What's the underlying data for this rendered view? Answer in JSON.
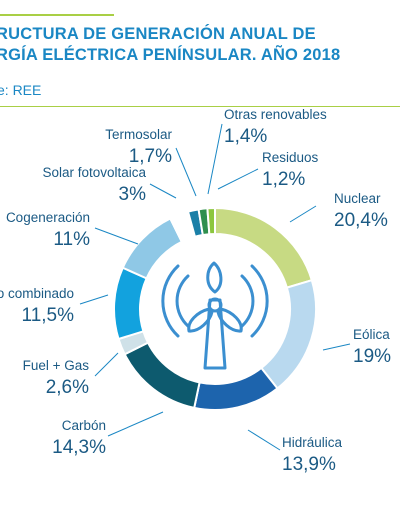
{
  "header": {
    "title_line1": "RUCTURA DE GENERACIÓN ANUAL DE",
    "title_line2": "RGÍA ELÉCTRICA PENÍNSULAR. AÑO 2018",
    "source": "e: REE"
  },
  "chart_data": {
    "type": "pie",
    "style": "donut",
    "center_icon": "wind-turbine-icon",
    "slices": [
      {
        "name": "Nuclear",
        "label": "20,4%",
        "value": 20.4,
        "color": "#c7da83"
      },
      {
        "name": "Eólica",
        "label": "19%",
        "value": 19.0,
        "color": "#b9d9ef"
      },
      {
        "name": "Hidráulica",
        "label": "13,9%",
        "value": 13.9,
        "color": "#1d64ad"
      },
      {
        "name": "Carbón",
        "label": "14,3%",
        "value": 14.3,
        "color": "#0d5a6e"
      },
      {
        "name": "Fuel + Gas",
        "label": "2,6%",
        "value": 2.6,
        "color": "#cfe1e8"
      },
      {
        "name": "o combinado",
        "label": "11,5%",
        "value": 11.5,
        "color": "#12a2de"
      },
      {
        "name": "Cogeneración",
        "label": "11%",
        "value": 11.0,
        "color": "#8fc8e6"
      },
      {
        "name": "Solar fotovoltaica",
        "label": "3%",
        "value": 3.0,
        "color": "#ffffff"
      },
      {
        "name": "Termosolar",
        "label": "1,7%",
        "value": 1.7,
        "color": "#1a7fa7"
      },
      {
        "name": "Otras renovables",
        "label": "1,4%",
        "value": 1.4,
        "color": "#2f8f4e"
      },
      {
        "name": "Residuos",
        "label": "1,2%",
        "value": 1.2,
        "color": "#8cc63f"
      }
    ]
  }
}
